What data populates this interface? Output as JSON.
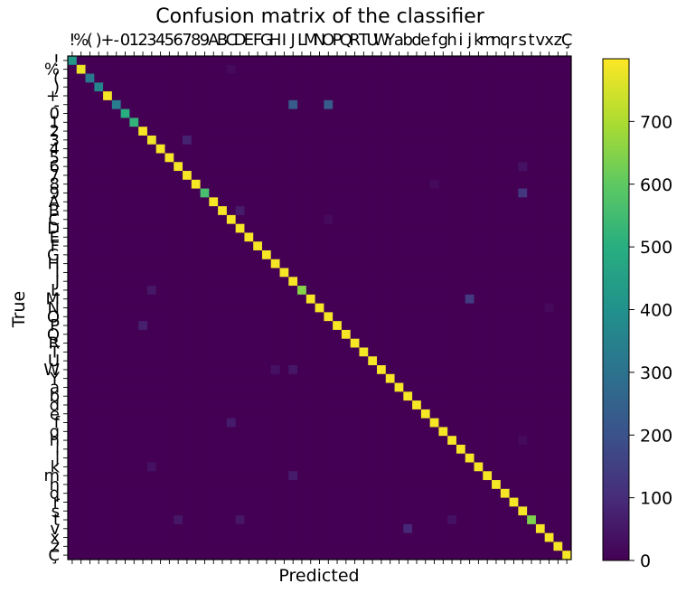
{
  "chart_data": {
    "type": "heatmap",
    "title": "Confusion matrix of the classifier",
    "xlabel": "Predicted",
    "ylabel": "True",
    "labels": [
      "!",
      "%",
      "(",
      ")",
      "+",
      "-",
      "0",
      "1",
      "2",
      "3",
      "4",
      "5",
      "6",
      "7",
      "8",
      "9",
      "A",
      "B",
      "C",
      "D",
      "E",
      "F",
      "G",
      "H",
      "I",
      "J",
      "L",
      "M",
      "N",
      "O",
      "P",
      "Q",
      "R",
      "T",
      "U",
      "W",
      "Y",
      "a",
      "b",
      "d",
      "e",
      "f",
      "g",
      "h",
      "i",
      "j",
      "k",
      "m",
      "n",
      "q",
      "r",
      "s",
      "t",
      "v",
      "x",
      "z",
      "Ç"
    ],
    "x_tick_text": [
      "!",
      "%",
      "(",
      ")",
      "+",
      "-",
      "0",
      "1",
      "2",
      "3",
      "4",
      "5",
      "6",
      "7",
      "8",
      "9",
      "A",
      "B",
      "C",
      "D",
      "E",
      "F",
      "G",
      "H",
      "I",
      "J",
      "L",
      "M",
      "N",
      "O",
      "P",
      "Q",
      "R",
      "T",
      "U",
      "W",
      "Y",
      "a",
      "b",
      "d",
      "e",
      "f",
      "g",
      "h",
      "i",
      "j",
      "k",
      "m",
      "n",
      "q",
      "r",
      "s",
      "t",
      "v",
      "x",
      "z",
      "Ç"
    ],
    "y_tick_text": [
      "!",
      "%",
      "(",
      ")",
      "+",
      "-",
      "0",
      "1",
      "2",
      "3",
      "4",
      "5",
      "6",
      "7",
      "8",
      "9",
      "A",
      "B",
      "C",
      "D",
      "E",
      "F",
      "G",
      "H",
      "I",
      "J",
      "L",
      "M",
      "N",
      "O",
      "P",
      "Q",
      "R",
      "T",
      "U",
      "W",
      "Y",
      "a",
      "b",
      "d",
      "e",
      "f",
      "g",
      "h",
      "i",
      "j",
      "k",
      "m",
      "n",
      "q",
      "r",
      "s",
      "t",
      "v",
      "x",
      "z",
      "Ç"
    ],
    "diagonal": [
      420,
      780,
      320,
      360,
      790,
      340,
      500,
      520,
      790,
      780,
      790,
      790,
      790,
      790,
      790,
      560,
      790,
      790,
      790,
      790,
      790,
      790,
      790,
      790,
      790,
      790,
      650,
      790,
      790,
      790,
      790,
      790,
      790,
      790,
      790,
      790,
      790,
      790,
      790,
      790,
      790,
      790,
      790,
      790,
      790,
      790,
      790,
      790,
      790,
      790,
      790,
      790,
      640,
      790,
      790,
      790,
      790
    ],
    "off_diagonal": [
      {
        "true": "%",
        "pred": "C",
        "value": 20
      },
      {
        "true": "-",
        "pred": "J",
        "value": 230
      },
      {
        "true": "-",
        "pred": "O",
        "value": 230
      },
      {
        "true": "3",
        "pred": "7",
        "value": 80
      },
      {
        "true": "6",
        "pred": "s",
        "value": 40
      },
      {
        "true": "8",
        "pred": "f",
        "value": 20
      },
      {
        "true": "9",
        "pred": "s",
        "value": 130
      },
      {
        "true": "B",
        "pred": "D",
        "value": 60
      },
      {
        "true": "C",
        "pred": "O",
        "value": 20
      },
      {
        "true": "L",
        "pred": "3",
        "value": 50
      },
      {
        "true": "M",
        "pred": "j",
        "value": 140
      },
      {
        "true": "N",
        "pred": "x",
        "value": 20
      },
      {
        "true": "P",
        "pred": "2",
        "value": 70
      },
      {
        "true": "W",
        "pred": "J",
        "value": 50
      },
      {
        "true": "W",
        "pred": "H",
        "value": 40
      },
      {
        "true": "f",
        "pred": "C",
        "value": 60
      },
      {
        "true": "h",
        "pred": "s",
        "value": 20
      },
      {
        "true": "k",
        "pred": "3",
        "value": 40
      },
      {
        "true": "m",
        "pred": "J",
        "value": 60
      },
      {
        "true": "t",
        "pred": "6",
        "value": 50
      },
      {
        "true": "t",
        "pred": "D",
        "value": 50
      },
      {
        "true": "t",
        "pred": "h",
        "value": 40
      },
      {
        "true": "v",
        "pred": "b",
        "value": 90
      }
    ],
    "colormap": "viridis",
    "colorbar_ticks": [
      0,
      100,
      200,
      300,
      400,
      500,
      600,
      700
    ],
    "colorbar_max": 800
  }
}
